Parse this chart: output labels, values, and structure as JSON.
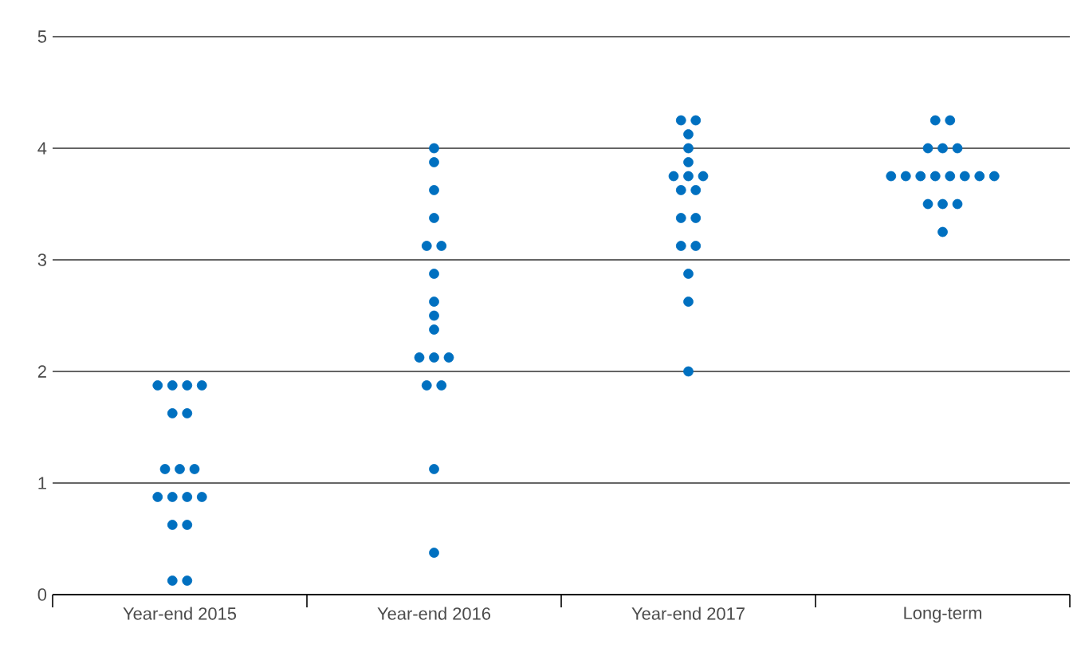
{
  "chart_data": {
    "type": "scatter",
    "categories": [
      "Year-end 2015",
      "Year-end 2016",
      "Year-end 2017",
      "Long-term"
    ],
    "series": [
      {
        "color": "#0070c0",
        "x": [
          "Year-end 2015",
          "Year-end 2015",
          "Year-end 2015",
          "Year-end 2015",
          "Year-end 2015",
          "Year-end 2015",
          "Year-end 2015",
          "Year-end 2015",
          "Year-end 2015",
          "Year-end 2015",
          "Year-end 2015",
          "Year-end 2015",
          "Year-end 2015",
          "Year-end 2015",
          "Year-end 2015",
          "Year-end 2015",
          "Year-end 2015",
          "Year-end 2016",
          "Year-end 2016",
          "Year-end 2016",
          "Year-end 2016",
          "Year-end 2016",
          "Year-end 2016",
          "Year-end 2016",
          "Year-end 2016",
          "Year-end 2016",
          "Year-end 2016",
          "Year-end 2016",
          "Year-end 2016",
          "Year-end 2016",
          "Year-end 2016",
          "Year-end 2016",
          "Year-end 2016",
          "Year-end 2016",
          "Year-end 2017",
          "Year-end 2017",
          "Year-end 2017",
          "Year-end 2017",
          "Year-end 2017",
          "Year-end 2017",
          "Year-end 2017",
          "Year-end 2017",
          "Year-end 2017",
          "Year-end 2017",
          "Year-end 2017",
          "Year-end 2017",
          "Year-end 2017",
          "Year-end 2017",
          "Year-end 2017",
          "Year-end 2017",
          "Year-end 2017",
          "Long-term",
          "Long-term",
          "Long-term",
          "Long-term",
          "Long-term",
          "Long-term",
          "Long-term",
          "Long-term",
          "Long-term",
          "Long-term",
          "Long-term",
          "Long-term",
          "Long-term",
          "Long-term",
          "Long-term",
          "Long-term",
          "Long-term"
        ],
        "values": [
          1.875,
          1.875,
          1.875,
          1.875,
          1.625,
          1.625,
          1.125,
          1.125,
          1.125,
          0.875,
          0.875,
          0.875,
          0.875,
          0.625,
          0.625,
          0.125,
          0.125,
          4.0,
          3.875,
          3.625,
          3.375,
          3.125,
          3.125,
          2.875,
          2.625,
          2.5,
          2.375,
          2.125,
          2.125,
          2.125,
          1.875,
          1.875,
          1.125,
          0.375,
          4.25,
          4.25,
          4.125,
          4.0,
          3.875,
          3.75,
          3.75,
          3.75,
          3.625,
          3.625,
          3.375,
          3.375,
          3.125,
          3.125,
          2.875,
          2.625,
          2.0,
          4.25,
          4.25,
          4.0,
          4.0,
          4.0,
          3.75,
          3.75,
          3.75,
          3.75,
          3.75,
          3.75,
          3.75,
          3.75,
          3.5,
          3.5,
          3.5,
          3.25
        ]
      }
    ],
    "ylim": [
      0,
      5
    ],
    "yticks": [
      0,
      1,
      2,
      3,
      4,
      5
    ],
    "grid": "y",
    "marker": "circle"
  }
}
